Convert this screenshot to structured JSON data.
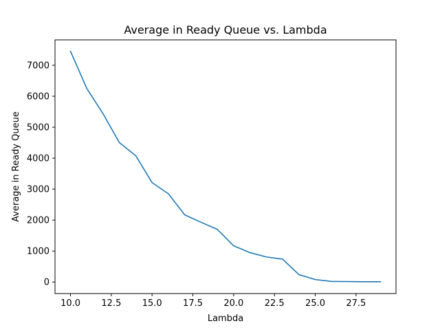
{
  "chart_data": {
    "type": "line",
    "title": "Average in Ready Queue vs. Lambda",
    "xlabel": "Lambda",
    "ylabel": "Average in Ready Queue",
    "xlim": [
      9.05,
      29.95
    ],
    "ylim": [
      -372,
      7820
    ],
    "xticks": [
      10.0,
      12.5,
      15.0,
      17.5,
      20.0,
      22.5,
      25.0,
      27.5
    ],
    "xtick_labels": [
      "10.0",
      "12.5",
      "15.0",
      "17.5",
      "20.0",
      "22.5",
      "25.0",
      "27.5"
    ],
    "yticks": [
      0,
      1000,
      2000,
      3000,
      4000,
      5000,
      6000,
      7000
    ],
    "ytick_labels": [
      "0",
      "1000",
      "2000",
      "3000",
      "4000",
      "5000",
      "6000",
      "7000"
    ],
    "grid": false,
    "series": [
      {
        "color": "#1f77b4",
        "x": [
          10,
          11,
          12,
          13,
          14,
          15,
          16,
          17,
          18,
          19,
          20,
          21,
          22,
          23,
          24,
          25,
          26,
          27,
          28,
          29
        ],
        "y": [
          7450,
          6250,
          5430,
          4500,
          4080,
          3210,
          2850,
          2170,
          1930,
          1700,
          1170,
          950,
          810,
          740,
          240,
          80,
          20,
          15,
          10,
          10
        ]
      }
    ]
  }
}
